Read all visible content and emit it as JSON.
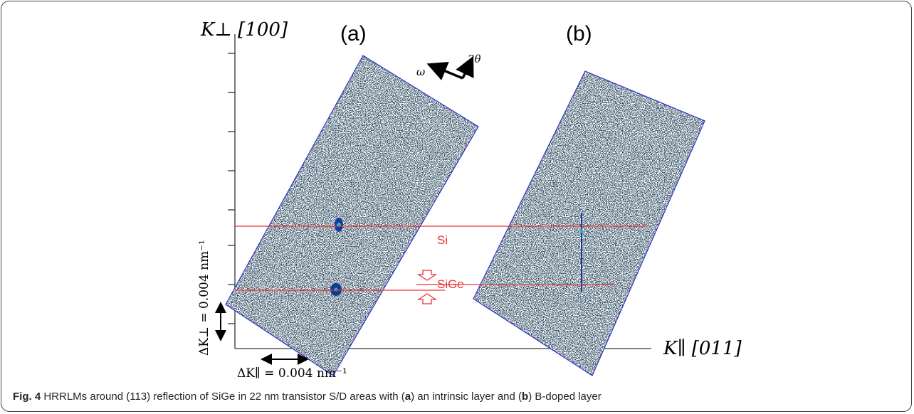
{
  "figure": {
    "y_axis_label": "K⊥ [100]",
    "x_axis_label": "K∥ [011]",
    "panels": [
      "(a)",
      "(b)"
    ],
    "omega": "ω",
    "two_theta": "2θ",
    "si": "Si",
    "sige": "SiGe",
    "delta_k_perp": "ΔK⊥ = 0.004 nm⁻¹",
    "delta_k_par": "ΔK∥ = 0.004 nm⁻¹"
  },
  "caption": {
    "label": "Fig. 4",
    "parts": [
      "HRRLMs around (113) reflection of SiGe in 22 nm transistor S/D areas with (",
      "a",
      ") an intrinsic layer and (",
      "b",
      ") B-doped layer"
    ]
  }
}
